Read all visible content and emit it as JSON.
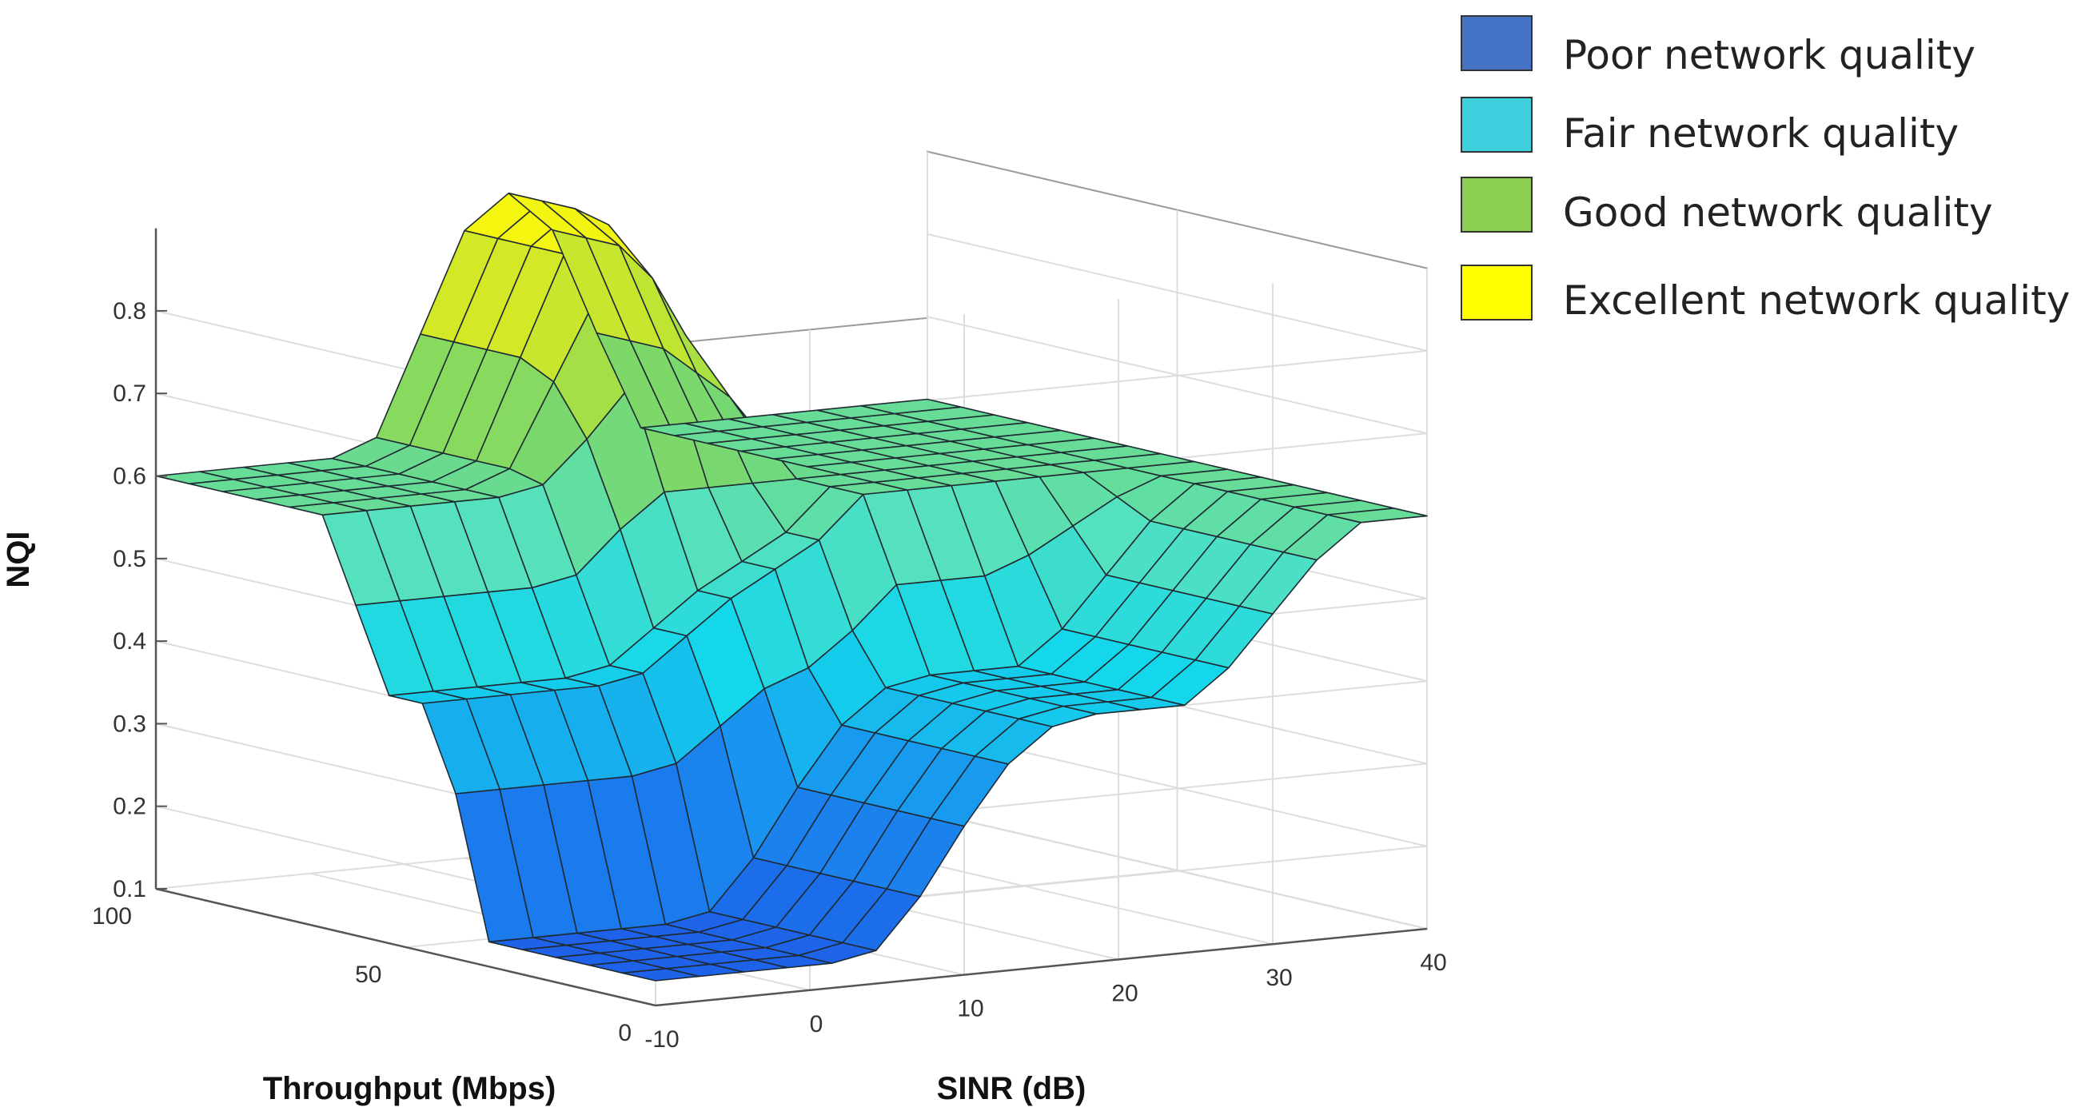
{
  "chart_data": {
    "type": "surface",
    "zlabel": "NQI",
    "xlabel": "Throughput (Mbps)",
    "ylabel": "SINR (dB)",
    "z_ticks": [
      "0.1",
      "0.2",
      "0.3",
      "0.4",
      "0.5",
      "0.6",
      "0.7",
      "0.8"
    ],
    "x_ticks": [
      "0",
      "50",
      "100"
    ],
    "y_ticks": [
      "-10",
      "0",
      "10",
      "20",
      "30",
      "40"
    ],
    "xlim": [
      0,
      100
    ],
    "ylim": [
      -10,
      40
    ],
    "zlim": [
      0.1,
      0.9
    ],
    "grid": true,
    "legend_position": "top-right",
    "legend": [
      {
        "label": "Poor network quality",
        "color": "#4472c4"
      },
      {
        "label": "Fair network quality",
        "color": "#3fd0e0"
      },
      {
        "label": "Good network quality",
        "color": "#8ccf52"
      },
      {
        "label": "Excellent network quality",
        "color": "#ffff00"
      }
    ],
    "throughput_grid": [
      0,
      6.67,
      13.33,
      20,
      26.67,
      33.33,
      40,
      46.67,
      53.33,
      60,
      66.67,
      73.33,
      80,
      86.67,
      93.33,
      100
    ],
    "sinr_grid": [
      -10,
      -7.14,
      -4.29,
      -1.43,
      1.43,
      4.29,
      7.14,
      10,
      12.86,
      15.71,
      18.57,
      21.43,
      24.29,
      27.14,
      30,
      32.86,
      35.71,
      40
    ],
    "nqi_surface": [
      [
        0.13,
        0.13,
        0.13,
        0.13,
        0.13,
        0.14,
        0.2,
        0.28,
        0.35,
        0.39,
        0.4,
        0.4,
        0.4,
        0.44,
        0.5,
        0.56,
        0.6,
        0.6
      ],
      [
        0.13,
        0.13,
        0.13,
        0.13,
        0.13,
        0.14,
        0.2,
        0.28,
        0.35,
        0.39,
        0.4,
        0.4,
        0.4,
        0.44,
        0.5,
        0.56,
        0.6,
        0.6
      ],
      [
        0.13,
        0.13,
        0.13,
        0.13,
        0.13,
        0.14,
        0.2,
        0.28,
        0.35,
        0.39,
        0.4,
        0.4,
        0.4,
        0.44,
        0.5,
        0.56,
        0.6,
        0.6
      ],
      [
        0.13,
        0.13,
        0.13,
        0.13,
        0.13,
        0.14,
        0.2,
        0.28,
        0.35,
        0.39,
        0.4,
        0.4,
        0.4,
        0.44,
        0.5,
        0.56,
        0.6,
        0.6
      ],
      [
        0.13,
        0.13,
        0.13,
        0.13,
        0.13,
        0.14,
        0.2,
        0.28,
        0.35,
        0.39,
        0.4,
        0.4,
        0.4,
        0.44,
        0.5,
        0.56,
        0.6,
        0.6
      ],
      [
        0.13,
        0.13,
        0.13,
        0.13,
        0.13,
        0.14,
        0.2,
        0.28,
        0.35,
        0.39,
        0.4,
        0.4,
        0.4,
        0.44,
        0.5,
        0.56,
        0.6,
        0.6
      ],
      [
        0.3,
        0.3,
        0.3,
        0.3,
        0.3,
        0.31,
        0.35,
        0.39,
        0.41,
        0.45,
        0.5,
        0.5,
        0.5,
        0.52,
        0.55,
        0.58,
        0.6,
        0.6
      ],
      [
        0.4,
        0.4,
        0.4,
        0.4,
        0.4,
        0.41,
        0.45,
        0.49,
        0.52,
        0.55,
        0.6,
        0.6,
        0.6,
        0.6,
        0.6,
        0.6,
        0.6,
        0.6
      ],
      [
        0.4,
        0.4,
        0.4,
        0.4,
        0.4,
        0.41,
        0.45,
        0.49,
        0.52,
        0.55,
        0.6,
        0.6,
        0.6,
        0.6,
        0.6,
        0.6,
        0.6,
        0.6
      ],
      [
        0.5,
        0.5,
        0.5,
        0.5,
        0.5,
        0.51,
        0.56,
        0.6,
        0.6,
        0.6,
        0.6,
        0.6,
        0.6,
        0.6,
        0.6,
        0.6,
        0.6,
        0.6
      ],
      [
        0.6,
        0.6,
        0.6,
        0.6,
        0.6,
        0.61,
        0.66,
        0.72,
        0.72,
        0.68,
        0.64,
        0.6,
        0.6,
        0.6,
        0.6,
        0.6,
        0.6,
        0.6
      ],
      [
        0.6,
        0.6,
        0.6,
        0.6,
        0.6,
        0.62,
        0.72,
        0.82,
        0.84,
        0.76,
        0.68,
        0.6,
        0.6,
        0.6,
        0.6,
        0.6,
        0.6,
        0.6
      ],
      [
        0.6,
        0.6,
        0.6,
        0.6,
        0.6,
        0.62,
        0.74,
        0.86,
        0.89,
        0.82,
        0.7,
        0.6,
        0.6,
        0.6,
        0.6,
        0.6,
        0.6,
        0.6
      ],
      [
        0.6,
        0.6,
        0.6,
        0.6,
        0.6,
        0.62,
        0.74,
        0.86,
        0.9,
        0.85,
        0.72,
        0.6,
        0.6,
        0.6,
        0.6,
        0.6,
        0.6,
        0.6
      ],
      [
        0.6,
        0.6,
        0.6,
        0.6,
        0.6,
        0.62,
        0.74,
        0.86,
        0.9,
        0.85,
        0.72,
        0.6,
        0.6,
        0.6,
        0.6,
        0.6,
        0.6,
        0.6
      ],
      [
        0.6,
        0.6,
        0.6,
        0.6,
        0.6,
        0.62,
        0.74,
        0.86,
        0.9,
        0.85,
        0.72,
        0.6,
        0.6,
        0.6,
        0.6,
        0.6,
        0.6,
        0.6
      ]
    ]
  }
}
